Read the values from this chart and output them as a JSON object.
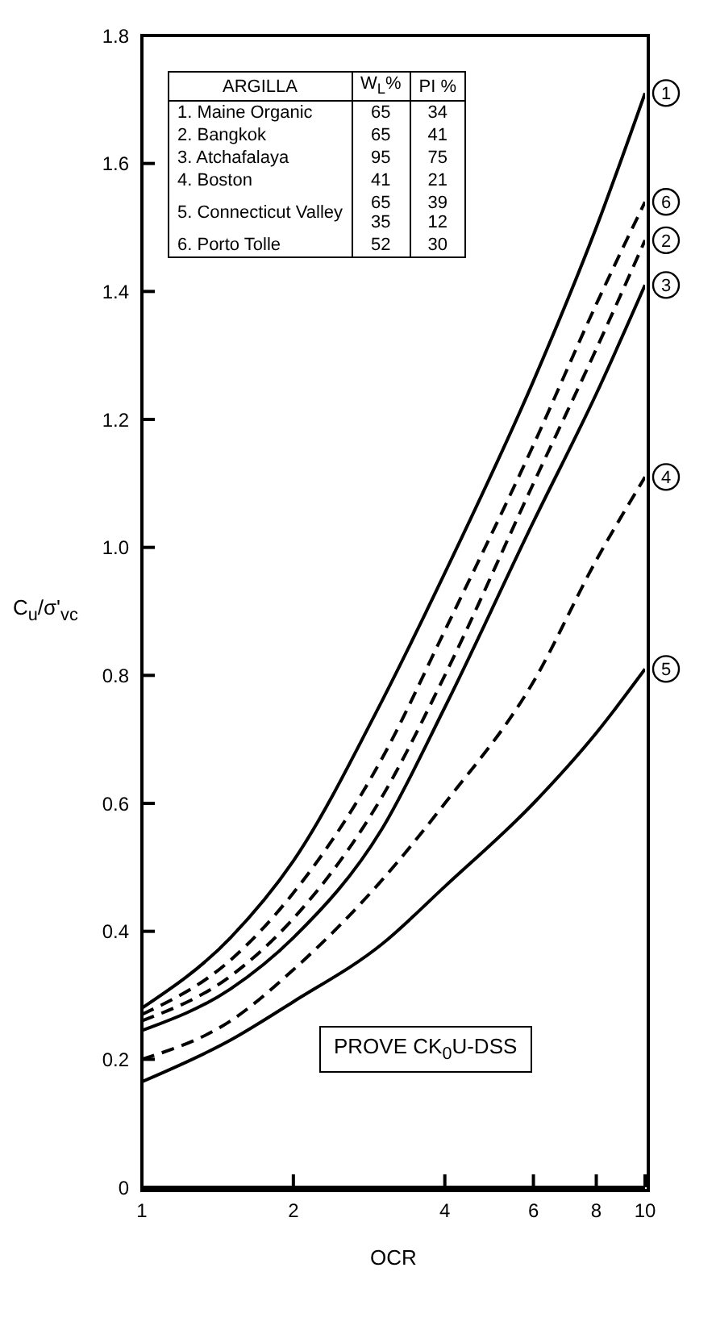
{
  "chart_data": {
    "type": "line",
    "xlabel": "OCR",
    "ylabel": "C$_{u}$/σ'$_{vc}$",
    "log": "x",
    "xlim": [
      1,
      10
    ],
    "xticks": [
      1,
      2,
      4,
      6,
      8,
      10
    ],
    "ylim": [
      0,
      1.8
    ],
    "yticks": [
      0,
      0.2,
      0.4,
      0.6,
      0.8,
      {
        "value": 1,
        "label": "1.0"
      },
      1.2,
      1.4,
      1.6,
      1.8
    ],
    "grid": false,
    "marker": "none",
    "x": [
      1,
      1.5,
      2,
      3,
      4,
      6,
      8,
      10
    ],
    "series": [
      {
        "name": "1",
        "color": "#000000",
        "line_style": "solid",
        "values": [
          0.28,
          0.39,
          0.51,
          0.76,
          0.96,
          1.26,
          1.5,
          1.71
        ]
      },
      {
        "name": "6",
        "color": "#000000",
        "line_style": "dashed",
        "values": [
          0.27,
          0.355,
          0.46,
          0.67,
          0.87,
          1.16,
          1.38,
          1.54
        ]
      },
      {
        "name": "2",
        "color": "#000000",
        "line_style": "dashed",
        "values": [
          0.26,
          0.33,
          0.42,
          0.61,
          0.8,
          1.1,
          1.31,
          1.48
        ]
      },
      {
        "name": "3",
        "color": "#000000",
        "line_style": "solid",
        "values": [
          0.245,
          0.31,
          0.39,
          0.56,
          0.75,
          1.04,
          1.24,
          1.41
        ]
      },
      {
        "name": "4",
        "color": "#000000",
        "line_style": "dashed",
        "values": [
          0.2,
          0.26,
          0.34,
          0.48,
          0.6,
          0.79,
          0.98,
          1.11
        ]
      },
      {
        "name": "5",
        "color": "#000000",
        "line_style": "solid",
        "values": [
          0.165,
          0.23,
          0.29,
          0.38,
          0.47,
          0.6,
          0.71,
          0.81
        ]
      }
    ],
    "annotations": [
      "PROVE CK$_{0}$U-DSS",
      "ARGILLA",
      "W$_{L}$%",
      "PI %",
      "1. Maine Organic",
      "65",
      "34",
      "2. Bangkok",
      "65",
      "41",
      "3. Atchafalaya",
      "95",
      "75",
      "4. Boston",
      "41",
      "21",
      "5. Connecticut Valley",
      "65\n35",
      "39\n12",
      "6. Porto Tolle",
      "52",
      "30"
    ]
  }
}
